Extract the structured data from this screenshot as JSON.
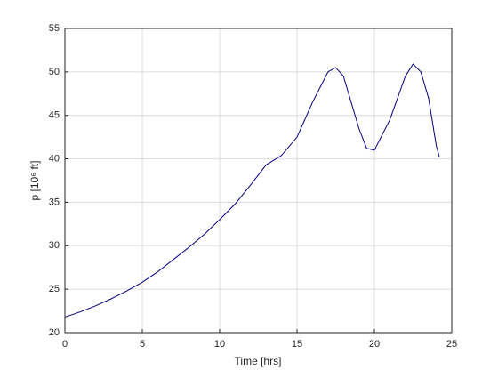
{
  "chart_data": {
    "type": "line",
    "xlabel": "Time [hrs]",
    "ylabel": "p [10⁶ ft]",
    "x": [
      0,
      1,
      2,
      3,
      4,
      5,
      6,
      7,
      8,
      9,
      10,
      11,
      12,
      13,
      14,
      15,
      16,
      17,
      17.5,
      18,
      19,
      19.5,
      20,
      21,
      22,
      22.5,
      23,
      23.5,
      24,
      24.2
    ],
    "series": [
      {
        "name": "p",
        "color": "#00007f",
        "values": [
          21.8,
          22.4,
          23.1,
          23.9,
          24.8,
          25.8,
          27.0,
          28.4,
          29.8,
          31.3,
          33.0,
          34.8,
          37.0,
          39.3,
          40.4,
          42.5,
          46.5,
          50.0,
          50.5,
          49.5,
          43.5,
          41.2,
          41.0,
          44.5,
          49.5,
          50.9,
          50.0,
          47.0,
          41.5,
          40.2
        ]
      }
    ],
    "xlim": [
      0,
      25
    ],
    "xticks": [
      0,
      5,
      10,
      15,
      20,
      25
    ],
    "ylim": [
      20,
      55
    ],
    "yticks": [
      20,
      25,
      30,
      35,
      40,
      45,
      50,
      55
    ],
    "grid": true
  }
}
